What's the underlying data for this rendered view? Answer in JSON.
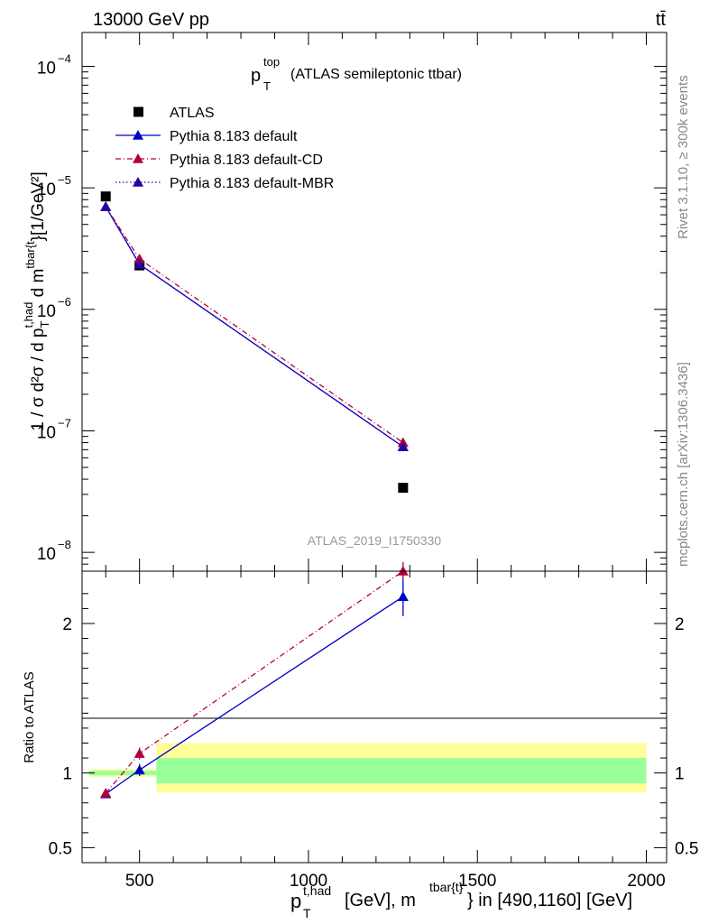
{
  "header": {
    "energy_label": "13000 GeV pp",
    "process_label": "tt̄"
  },
  "side_text": {
    "rivet": "Rivet 3.1.10, ≥ 300k events",
    "source": "mcplots.cern.ch [arXiv:1306.3436]"
  },
  "chart_data": [
    {
      "type": "line",
      "panel": "main",
      "title_main": "p",
      "title_sup": "top",
      "title_sub": "T",
      "title_rest": "(ATLAS semileptonic ttbar)",
      "analysis_label": "ATLAS_2019_I1750330",
      "ylabel": "1 / σ d²σ / d p_T^{t,had} d m^{tbar{t}} [1/GeV²]",
      "yscale": "log",
      "ylim": [
        7e-09,
        0.00019
      ],
      "xlim": [
        330,
        2060
      ],
      "ytick_labels": [
        {
          "base": "10",
          "exp": "−4",
          "value": 0.0001
        },
        {
          "base": "10",
          "exp": "−5",
          "value": 1e-05
        },
        {
          "base": "10",
          "exp": "−6",
          "value": 1e-06
        },
        {
          "base": "10",
          "exp": "−7",
          "value": 1e-07
        },
        {
          "base": "10",
          "exp": "−8",
          "value": 1e-08
        }
      ],
      "legend": [
        {
          "label": "ATLAS",
          "color": "#000000",
          "style": "marker"
        },
        {
          "label": "Pythia 8.183 default",
          "color": "#0000cc",
          "style": "solid"
        },
        {
          "label": "Pythia 8.183 default-CD",
          "color": "#b0003a",
          "style": "dashdot"
        },
        {
          "label": "Pythia 8.183 default-MBR",
          "color": "#2a00a0",
          "style": "dotted"
        }
      ],
      "series": [
        {
          "name": "ATLAS",
          "x": [
            400,
            500,
            1280
          ],
          "y": [
            8.5e-06,
            2.3e-06,
            3.4e-08
          ]
        },
        {
          "name": "Pythia 8.183 default",
          "x": [
            400,
            500,
            1280
          ],
          "y": [
            7e-06,
            2.35e-06,
            7.4e-08
          ]
        },
        {
          "name": "Pythia 8.183 default-CD",
          "x": [
            400,
            500,
            1280
          ],
          "y": [
            7e-06,
            2.6e-06,
            8e-08
          ]
        },
        {
          "name": "Pythia 8.183 default-MBR",
          "x": [
            400,
            500,
            1280
          ],
          "y": [
            7e-06,
            2.35e-06,
            7.4e-08
          ]
        }
      ]
    },
    {
      "type": "line",
      "panel": "ratio",
      "ylabel": "Ratio to ATLAS",
      "xlabel_main": "p",
      "xlabel_sub": "T",
      "xlabel_sup": "t,had",
      "xlabel_mid": "[GeV], m",
      "xlabel_sup2": "tbar{t}",
      "xlabel_rest": "} in [490,1160] [GeV]",
      "ylim": [
        0.4,
        2.35
      ],
      "xlim": [
        330,
        2060
      ],
      "x_ticks": [
        500,
        1000,
        1500,
        2000
      ],
      "x_tick_labels": [
        "500",
        "1000",
        "1500",
        "2000"
      ],
      "y_ticks": [
        0.5,
        1,
        2
      ],
      "y_tick_labels": [
        "0.5",
        "1",
        "2"
      ],
      "bands": [
        {
          "x0": 350,
          "x1": 550,
          "yellow": [
            0.975,
            1.025
          ],
          "green": [
            0.985,
            1.015
          ]
        },
        {
          "x0": 550,
          "x1": 2000,
          "yellow": [
            0.87,
            1.2
          ],
          "green": [
            0.93,
            1.1
          ]
        }
      ],
      "series": [
        {
          "name": "Pythia 8.183 default",
          "x": [
            400,
            500,
            1280
          ],
          "y": [
            0.86,
            1.02,
            2.18
          ],
          "err": [
            0.02,
            0.04,
            0.13
          ]
        },
        {
          "name": "Pythia 8.183 default-CD",
          "x": [
            400,
            500,
            1280
          ],
          "y": [
            0.865,
            1.13,
            2.35
          ],
          "err": [
            0.02,
            0.04,
            0.06
          ]
        }
      ]
    }
  ]
}
